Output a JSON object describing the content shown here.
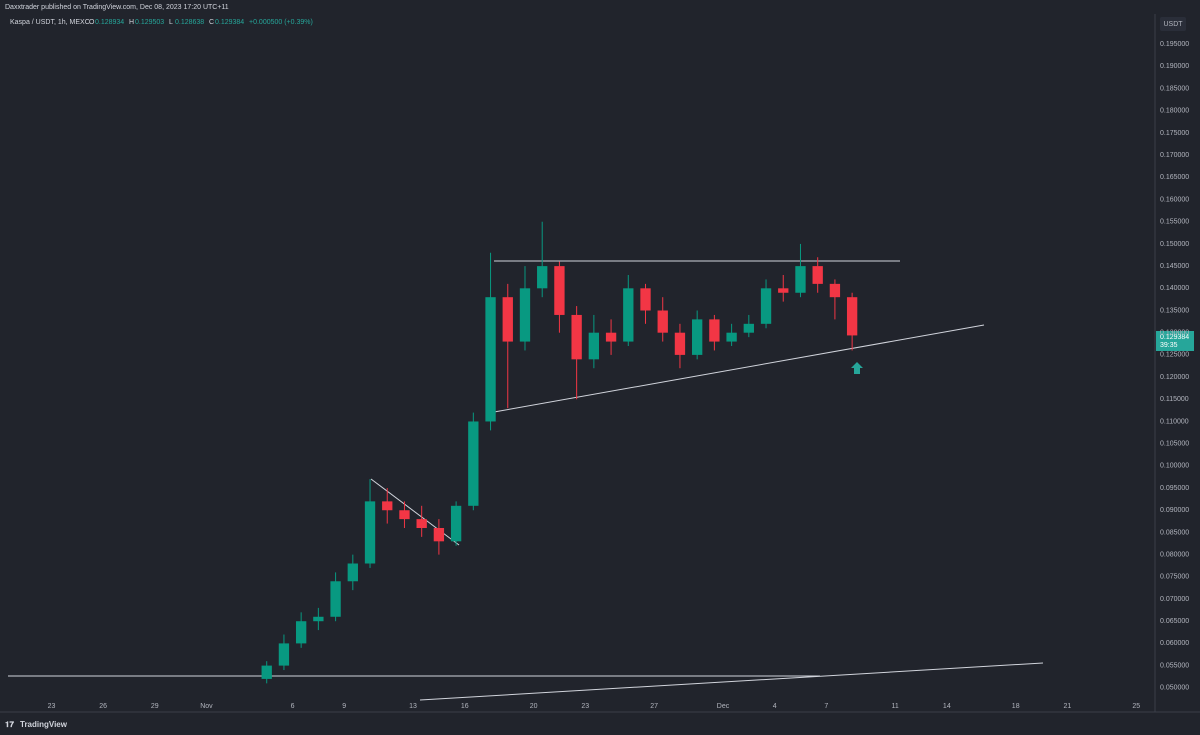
{
  "header": {
    "publisher": "Daxxtrader published on TradingView.com, Dec 08, 2023 17:20 UTC+11",
    "symbol": "Kaspa / USDT, 1h, MEXC",
    "ohlc": [
      {
        "key": "O",
        "text": "0.128934"
      },
      {
        "key": "H",
        "text": "0.129503"
      },
      {
        "key": "L",
        "text": "0.128638"
      },
      {
        "key": "C",
        "text": "0.129384"
      }
    ],
    "change": "+0.000500 (+0.39%)",
    "currency": "USDT",
    "last_price": "0.129384",
    "countdown": "39:35",
    "brand": "TradingView"
  },
  "chart_data": {
    "type": "candlestick",
    "grid": false,
    "up_color": "#089981",
    "down_color": "#f23645",
    "x": [
      12.5,
      13.5,
      14.5,
      15.5,
      16.5,
      17.5,
      18.5,
      19.5,
      20.5,
      21.5,
      22.5,
      23.5,
      24.5,
      25.5,
      26.5,
      27.5,
      28.5,
      29.5,
      30.5,
      31.5,
      32.5,
      33.5,
      34.5,
      35.5,
      36.5,
      37.5,
      38.5,
      39.5,
      40.5,
      41.5,
      42.5,
      43.5,
      44.5,
      45.5,
      46.5
    ],
    "open": [
      0.052,
      0.055,
      0.06,
      0.065,
      0.066,
      0.074,
      0.078,
      0.092,
      0.09,
      0.088,
      0.086,
      0.083,
      0.091,
      0.11,
      0.138,
      0.128,
      0.14,
      0.145,
      0.134,
      0.124,
      0.13,
      0.128,
      0.14,
      0.135,
      0.13,
      0.125,
      0.133,
      0.128,
      0.13,
      0.132,
      0.14,
      0.139,
      0.145,
      0.141,
      0.138
    ],
    "high": [
      0.056,
      0.062,
      0.067,
      0.068,
      0.076,
      0.08,
      0.097,
      0.095,
      0.092,
      0.091,
      0.088,
      0.092,
      0.112,
      0.148,
      0.141,
      0.145,
      0.155,
      0.146,
      0.136,
      0.134,
      0.133,
      0.143,
      0.141,
      0.138,
      0.132,
      0.135,
      0.134,
      0.132,
      0.134,
      0.142,
      0.143,
      0.15,
      0.147,
      0.142,
      0.139
    ],
    "low": [
      0.051,
      0.054,
      0.059,
      0.063,
      0.065,
      0.072,
      0.077,
      0.087,
      0.086,
      0.084,
      0.08,
      0.082,
      0.09,
      0.108,
      0.113,
      0.126,
      0.138,
      0.13,
      0.115,
      0.122,
      0.125,
      0.127,
      0.132,
      0.128,
      0.122,
      0.124,
      0.126,
      0.127,
      0.129,
      0.131,
      0.137,
      0.138,
      0.139,
      0.133,
      0.126
    ],
    "close": [
      0.055,
      0.06,
      0.065,
      0.066,
      0.074,
      0.078,
      0.092,
      0.09,
      0.088,
      0.086,
      0.083,
      0.091,
      0.11,
      0.138,
      0.128,
      0.14,
      0.145,
      0.134,
      0.124,
      0.13,
      0.128,
      0.14,
      0.135,
      0.13,
      0.125,
      0.133,
      0.128,
      0.13,
      0.132,
      0.14,
      0.139,
      0.145,
      0.141,
      0.138,
      0.129384
    ],
    "xlim": [
      -2.7,
      63.8
    ],
    "xticks": [
      {
        "value": 0,
        "label": "23"
      },
      {
        "value": 3,
        "label": "26"
      },
      {
        "value": 6,
        "label": "29"
      },
      {
        "value": 9,
        "label": "Nov"
      },
      {
        "value": 14,
        "label": "6"
      },
      {
        "value": 17,
        "label": "9"
      },
      {
        "value": 21,
        "label": "13"
      },
      {
        "value": 24,
        "label": "16"
      },
      {
        "value": 28,
        "label": "20"
      },
      {
        "value": 31,
        "label": "23"
      },
      {
        "value": 35,
        "label": "27"
      },
      {
        "value": 39,
        "label": "Dec"
      },
      {
        "value": 42,
        "label": "4"
      },
      {
        "value": 45,
        "label": "7"
      },
      {
        "value": 49,
        "label": "11"
      },
      {
        "value": 52,
        "label": "14"
      },
      {
        "value": 56,
        "label": "18"
      },
      {
        "value": 59,
        "label": "21"
      },
      {
        "value": 63,
        "label": "25"
      }
    ],
    "ylim": [
      0.0477,
      0.2018
    ],
    "yticks": [
      {
        "value": 0.195,
        "label": "0.195000"
      },
      {
        "value": 0.19,
        "label": "0.190000"
      },
      {
        "value": 0.185,
        "label": "0.185000"
      },
      {
        "value": 0.18,
        "label": "0.180000"
      },
      {
        "value": 0.175,
        "label": "0.175000"
      },
      {
        "value": 0.17,
        "label": "0.170000"
      },
      {
        "value": 0.165,
        "label": "0.165000"
      },
      {
        "value": 0.16,
        "label": "0.160000"
      },
      {
        "value": 0.155,
        "label": "0.155000"
      },
      {
        "value": 0.15,
        "label": "0.150000"
      },
      {
        "value": 0.145,
        "label": "0.145000"
      },
      {
        "value": 0.14,
        "label": "0.140000"
      },
      {
        "value": 0.135,
        "label": "0.135000"
      },
      {
        "value": 0.13,
        "label": "0.130000"
      },
      {
        "value": 0.125,
        "label": "0.125000"
      },
      {
        "value": 0.12,
        "label": "0.120000"
      },
      {
        "value": 0.115,
        "label": "0.115000"
      },
      {
        "value": 0.11,
        "label": "0.110000"
      },
      {
        "value": 0.105,
        "label": "0.105000"
      },
      {
        "value": 0.1,
        "label": "0.100000"
      },
      {
        "value": 0.095,
        "label": "0.095000"
      },
      {
        "value": 0.09,
        "label": "0.090000"
      },
      {
        "value": 0.085,
        "label": "0.085000"
      },
      {
        "value": 0.08,
        "label": "0.080000"
      },
      {
        "value": 0.075,
        "label": "0.075000"
      },
      {
        "value": 0.07,
        "label": "0.070000"
      },
      {
        "value": 0.065,
        "label": "0.065000"
      },
      {
        "value": 0.06,
        "label": "0.060000"
      },
      {
        "value": 0.055,
        "label": "0.055000"
      },
      {
        "value": 0.05,
        "label": "0.050000"
      }
    ]
  }
}
